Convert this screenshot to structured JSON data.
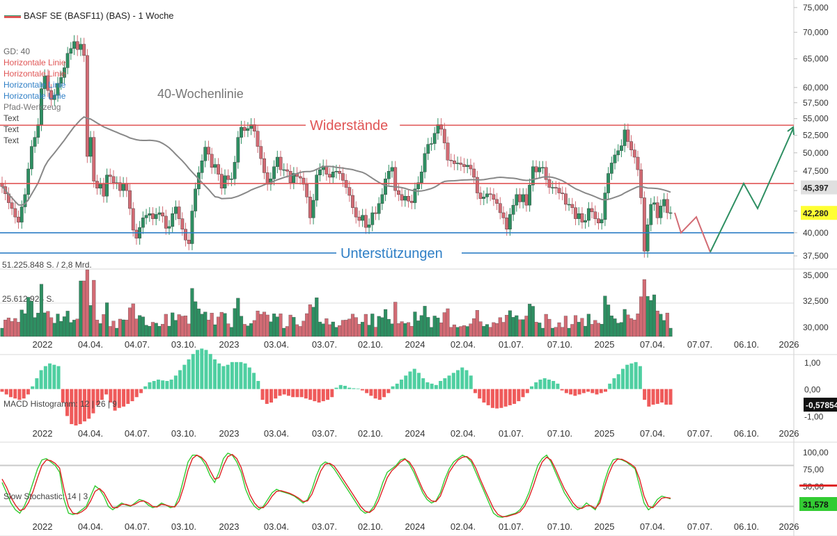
{
  "title": "BASF SE (BASF11) (BAS) - 1 Woche",
  "legend_items": [
    {
      "text": "GD: 40",
      "color": "#666666"
    },
    {
      "text": "Horizontale Linie",
      "color": "#e05555"
    },
    {
      "text": "Horizontale Linie",
      "color": "#e05555"
    },
    {
      "text": "Horizontale Linie",
      "color": "#2f7fc6"
    },
    {
      "text": "Horizontale Linie",
      "color": "#2f7fc6"
    },
    {
      "text": "Pfad-Werkzeug",
      "color": "#777777"
    },
    {
      "text": "Text",
      "color": "#444444"
    },
    {
      "text": "Text",
      "color": "#444444"
    },
    {
      "text": "Text",
      "color": "#444444"
    }
  ],
  "annotations": {
    "ma_label": "40-Wochenlinie",
    "resistance": "Widerstände",
    "support": "Unterstützungen"
  },
  "colors": {
    "up": "#2e8f62",
    "down": "#d26b74",
    "resistance": "#e05555",
    "support": "#2f7fc6",
    "ma": "#888888",
    "macd_up": "#4fcfa1",
    "macd_down": "#ef5a5a",
    "stoch_k": "#33cc33",
    "stoch_d": "#dd2222"
  },
  "chart_data": [
    {
      "type": "candlestick",
      "title": "BASF SE (BASF11) (BAS) - 1 Woche",
      "y_scale": "log",
      "y_ticks": [
        "75,000",
        "70,000",
        "65,000",
        "60,000",
        "57,500",
        "55,000",
        "52,500",
        "50,000",
        "47,500",
        "45,000",
        "42,500",
        "40,000",
        "37,500"
      ],
      "ylim": [
        36.5,
        76
      ],
      "x_tick_labels": [
        "2022",
        "04.04.",
        "04.07.",
        "03.10.",
        "2023",
        "03.04.",
        "03.07.",
        "02.10.",
        "2024",
        "02.04.",
        "01.07.",
        "07.10.",
        "2025",
        "07.04.",
        "07.07.",
        "06.10.",
        "2026"
      ],
      "close": [
        45.5,
        44.6,
        43.5,
        42.8,
        41.8,
        41.2,
        43.0,
        44.5,
        47.8,
        50.9,
        52.2,
        54.1,
        59.8,
        62.0,
        59.5,
        58.0,
        58.7,
        60.7,
        61.7,
        63.4,
        66.0,
        66.9,
        68.2,
        66.7,
        67.7,
        65.6,
        49.5,
        52.2,
        46.2,
        45.3,
        45.8,
        44.3,
        47.0,
        46.8,
        46.0,
        46.0,
        45.0,
        45.9,
        45.0,
        42.8,
        40.3,
        39.4,
        40.6,
        41.7,
        42.0,
        42.2,
        41.6,
        42.1,
        42.3,
        41.9,
        40.5,
        40.7,
        42.2,
        43.0,
        41.6,
        40.4,
        39.2,
        38.8,
        42.5,
        45.2,
        47.3,
        48.9,
        50.8,
        49.8,
        48.0,
        48.4,
        47.1,
        45.3,
        46.9,
        46.4,
        46.5,
        48.7,
        52.2,
        53.7,
        53.2,
        53.5,
        54.1,
        53.1,
        50.9,
        49.2,
        47.3,
        45.8,
        46.5,
        48.1,
        49.4,
        47.7,
        47.7,
        47.5,
        46.0,
        47.2,
        46.8,
        46.6,
        45.8,
        44.2,
        41.7,
        43.8,
        47.0,
        47.7,
        48.2,
        47.1,
        46.7,
        47.4,
        47.5,
        47.2,
        46.3,
        45.4,
        44.4,
        42.9,
        41.8,
        41.4,
        42.0,
        40.6,
        40.9,
        42.3,
        42.2,
        43.4,
        44.5,
        46.5,
        47.5,
        48.0,
        45.0,
        44.5,
        43.8,
        44.3,
        43.7,
        43.5,
        45.2,
        46.0,
        47.4,
        49.9,
        51.2,
        51.3,
        52.8,
        54.1,
        53.4,
        51.4,
        49.0,
        48.9,
        48.5,
        48.6,
        48.4,
        48.1,
        48.3,
        47.8,
        46.7,
        44.7,
        44.0,
        44.2,
        44.6,
        44.5,
        43.9,
        43.4,
        42.3,
        41.7,
        40.4,
        42.1,
        43.2,
        44.5,
        43.6,
        44.5,
        43.2,
        45.7,
        48.1,
        47.4,
        48.0,
        48.0,
        46.4,
        45.4,
        45.4,
        45.3,
        44.7,
        44.6,
        43.3,
        43.3,
        42.9,
        41.6,
        42.2,
        41.2,
        41.4,
        42.8,
        42.4,
        41.6,
        41.1,
        41.5,
        44.7,
        47.2,
        48.6,
        49.7,
        50.3,
        51.0,
        53.3,
        51.6,
        50.4,
        49.4,
        47.7,
        44.1,
        38.0,
        40.9,
        43.3,
        43.5,
        41.7,
        43.1,
        43.9,
        42.3,
        42.3
      ],
      "volume_axis": [
        "35,000",
        "32,500",
        "30,000"
      ],
      "volume_labels": [
        "51.225.848 S. / 2,8 Mrd.",
        "25.612.924 S."
      ],
      "ma_period": 40,
      "ma_label": "GD: 40",
      "resistance_levels": [
        54.0,
        45.9
      ],
      "support_levels": [
        40.0,
        37.8
      ],
      "projection_path": [
        42.3,
        40.0,
        41.8,
        37.9,
        45.9,
        42.8,
        53.5
      ],
      "price_badges": [
        {
          "label": "45,397",
          "color": "#e0e0e0"
        },
        {
          "label": "42,280",
          "color": "#ffff33"
        }
      ]
    },
    {
      "type": "histogram",
      "title": "MACD Histogramm: 12 | 26 | 9",
      "y_ticks": [
        "1,00",
        "0,00",
        "-1,00"
      ],
      "ylim": [
        -1.35,
        1.15
      ],
      "last_value": "-0,57854",
      "values": [
        -0.1,
        -0.2,
        -0.3,
        -0.35,
        -0.4,
        -0.35,
        -0.2,
        0.1,
        0.4,
        0.7,
        0.85,
        0.95,
        0.9,
        0.85,
        -0.5,
        -1.0,
        -1.3,
        -1.35,
        -1.3,
        -1.2,
        -1.1,
        -0.9,
        -0.6,
        -0.4,
        -0.2,
        -0.5,
        -0.8,
        -0.7,
        -0.65,
        -0.55,
        -0.45,
        -0.3,
        -0.15,
        0.1,
        0.25,
        0.3,
        0.35,
        0.32,
        0.3,
        0.35,
        0.5,
        0.7,
        0.9,
        1.1,
        1.3,
        1.45,
        1.5,
        1.45,
        1.3,
        1.1,
        0.95,
        0.85,
        0.9,
        1.0,
        1.0,
        1.0,
        0.95,
        0.8,
        0.6,
        0.3,
        -0.4,
        -0.55,
        -0.5,
        -0.35,
        -0.25,
        -0.2,
        -0.25,
        -0.3,
        -0.3,
        -0.3,
        -0.35,
        -0.4,
        -0.45,
        -0.5,
        -0.45,
        -0.4,
        -0.3,
        0.05,
        0.15,
        0.12,
        0.05,
        0.03,
        0.02,
        -0.05,
        -0.15,
        -0.25,
        -0.35,
        -0.4,
        -0.3,
        -0.15,
        0.1,
        0.2,
        0.35,
        0.5,
        0.65,
        0.75,
        0.6,
        0.4,
        0.25,
        0.2,
        0.15,
        0.3,
        0.4,
        0.5,
        0.6,
        0.7,
        0.8,
        0.7,
        0.5,
        -0.15,
        -0.35,
        -0.5,
        -0.6,
        -0.7,
        -0.72,
        -0.7,
        -0.65,
        -0.6,
        -0.55,
        -0.45,
        -0.3,
        -0.15,
        0.1,
        0.25,
        0.35,
        0.4,
        0.35,
        0.3,
        0.2,
        -0.05,
        -0.15,
        -0.2,
        -0.25,
        -0.2,
        -0.15,
        -0.1,
        -0.15,
        -0.2,
        -0.15,
        -0.1,
        0.2,
        0.4,
        0.55,
        0.75,
        0.9,
        0.95,
        1.0,
        0.85,
        -0.4,
        -0.65,
        -0.58,
        -0.55,
        -0.5,
        -0.58,
        -0.58
      ]
    },
    {
      "type": "line",
      "title": "Slow Stochastic: 14 | 3",
      "y_ticks": [
        "100,00",
        "75,00",
        "50,00",
        "25,00"
      ],
      "ylim": [
        0,
        110
      ],
      "last_value": "31,578",
      "series": [
        {
          "name": "%K",
          "color": "#33cc33",
          "values": [
            55,
            40,
            25,
            15,
            10,
            20,
            35,
            55,
            75,
            88,
            90,
            85,
            80,
            70,
            30,
            10,
            8,
            10,
            15,
            20,
            35,
            50,
            45,
            35,
            20,
            15,
            20,
            25,
            22,
            20,
            25,
            30,
            28,
            22,
            18,
            20,
            25,
            22,
            18,
            20,
            35,
            60,
            85,
            95,
            95,
            90,
            80,
            65,
            55,
            70,
            90,
            98,
            95,
            85,
            70,
            45,
            30,
            20,
            15,
            20,
            30,
            40,
            45,
            42,
            40,
            38,
            35,
            30,
            25,
            30,
            45,
            65,
            80,
            85,
            82,
            75,
            65,
            55,
            45,
            35,
            25,
            15,
            10,
            12,
            20,
            35,
            55,
            70,
            75,
            80,
            88,
            90,
            82,
            70,
            55,
            40,
            30,
            25,
            28,
            40,
            60,
            75,
            85,
            90,
            95,
            92,
            85,
            70,
            55,
            40,
            25,
            10,
            5,
            4,
            6,
            8,
            10,
            15,
            25,
            40,
            60,
            80,
            90,
            95,
            85,
            70,
            55,
            40,
            30,
            20,
            15,
            18,
            25,
            20,
            15,
            30,
            55,
            75,
            88,
            90,
            88,
            85,
            80,
            75,
            50,
            25,
            15,
            20,
            30,
            35,
            33,
            31
          ]
        },
        {
          "name": "%D",
          "color": "#dd2222",
          "values": [
            60,
            48,
            33,
            22,
            14,
            16,
            26,
            42,
            62,
            80,
            88,
            87,
            83,
            76,
            45,
            20,
            10,
            9,
            12,
            17,
            28,
            42,
            46,
            40,
            28,
            18,
            18,
            23,
            23,
            21,
            23,
            27,
            28,
            25,
            20,
            19,
            23,
            22,
            20,
            19,
            28,
            48,
            73,
            90,
            95,
            92,
            85,
            72,
            60,
            62,
            80,
            93,
            96,
            90,
            77,
            55,
            37,
            25,
            18,
            18,
            25,
            35,
            42,
            43,
            41,
            39,
            36,
            32,
            27,
            28,
            38,
            55,
            72,
            82,
            83,
            79,
            70,
            60,
            50,
            40,
            30,
            20,
            13,
            11,
            16,
            28,
            45,
            62,
            72,
            78,
            85,
            89,
            85,
            75,
            60,
            45,
            34,
            28,
            27,
            35,
            52,
            70,
            80,
            88,
            92,
            93,
            88,
            76,
            60,
            45,
            31,
            17,
            8,
            5,
            5,
            7,
            9,
            12,
            20,
            33,
            50,
            70,
            85,
            92,
            88,
            75,
            60,
            46,
            35,
            25,
            18,
            17,
            21,
            21,
            17,
            25,
            47,
            67,
            82,
            89,
            89,
            86,
            82,
            77,
            60,
            35,
            20,
            18,
            25,
            32,
            33,
            32
          ]
        }
      ]
    }
  ]
}
